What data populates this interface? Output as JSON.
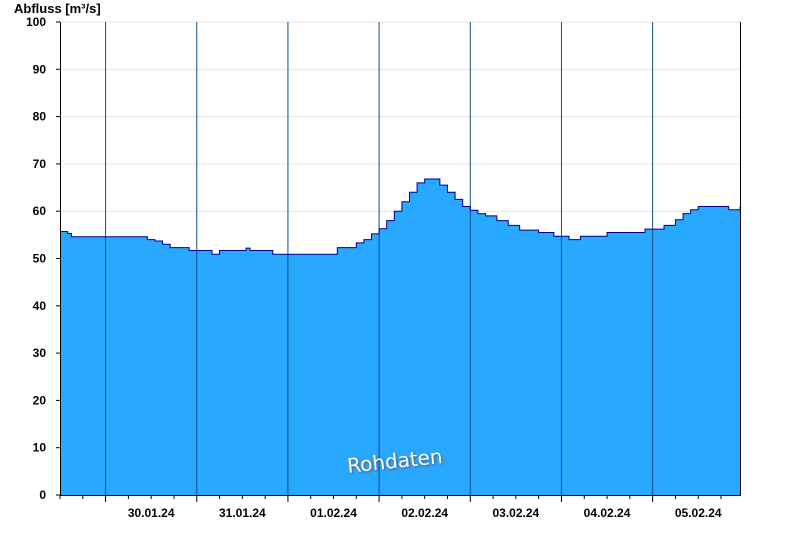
{
  "chart_data": {
    "type": "area",
    "ylabel": "Abfluss [m³/s]",
    "ylim": [
      0,
      100
    ],
    "yticks": [
      0,
      10,
      20,
      30,
      40,
      50,
      60,
      70,
      80,
      90,
      100
    ],
    "xlim": [
      "2024-01-29 12:00",
      "2024-02-05 23:00"
    ],
    "x_tick_labels": [
      "30.01.24",
      "31.01.24",
      "01.02.24",
      "02.02.24",
      "03.02.24",
      "04.02.24",
      "05.02.24"
    ],
    "grid": true,
    "annotation": "Rohdaten",
    "colors": {
      "fill": "#29a8ff",
      "line": "#00008b",
      "day_divider": "#104e8b"
    },
    "series": [
      {
        "x": [
          "2024-01-29 12:00",
          "2024-01-29 14:00",
          "2024-01-29 15:00",
          "2024-01-30 03:00",
          "2024-01-30 05:00",
          "2024-01-30 08:00",
          "2024-01-30 11:00",
          "2024-01-30 13:00",
          "2024-01-30 15:00",
          "2024-01-30 17:00",
          "2024-01-30 22:00",
          "2024-01-31 00:00",
          "2024-01-31 04:00",
          "2024-01-31 06:00",
          "2024-01-31 11:00",
          "2024-01-31 13:00",
          "2024-01-31 14:00",
          "2024-01-31 16:00",
          "2024-01-31 20:00",
          "2024-01-31 22:00",
          "2024-02-01 12:00",
          "2024-02-01 13:00",
          "2024-02-01 17:00",
          "2024-02-01 18:00",
          "2024-02-01 20:00",
          "2024-02-01 22:00",
          "2024-02-02 00:00",
          "2024-02-02 02:00",
          "2024-02-02 04:00",
          "2024-02-02 06:00",
          "2024-02-02 08:00",
          "2024-02-02 10:00",
          "2024-02-02 12:00",
          "2024-02-02 14:00",
          "2024-02-02 16:00",
          "2024-02-02 18:00",
          "2024-02-02 20:00",
          "2024-02-02 22:00",
          "2024-02-03 00:00",
          "2024-02-03 02:00",
          "2024-02-03 04:00",
          "2024-02-03 07:00",
          "2024-02-03 10:00",
          "2024-02-03 13:00",
          "2024-02-03 16:00",
          "2024-02-03 18:00",
          "2024-02-03 22:00",
          "2024-02-04 02:00",
          "2024-02-04 05:00",
          "2024-02-04 06:00",
          "2024-02-04 12:00",
          "2024-02-04 18:00",
          "2024-02-04 22:00",
          "2024-02-05 00:00",
          "2024-02-05 03:00",
          "2024-02-05 06:00",
          "2024-02-05 08:00",
          "2024-02-05 10:00",
          "2024-02-05 12:00",
          "2024-02-05 18:00",
          "2024-02-05 20:00",
          "2024-02-05 23:00"
        ],
        "y": [
          55.7,
          55.3,
          54.6,
          54.6,
          54.6,
          54.6,
          54.0,
          53.7,
          53.0,
          52.3,
          51.7,
          51.7,
          50.9,
          51.7,
          51.7,
          52.2,
          51.7,
          51.7,
          50.9,
          50.9,
          50.9,
          52.3,
          52.3,
          53.3,
          54.0,
          55.2,
          56.3,
          58.0,
          60.0,
          62.0,
          64.0,
          66.0,
          66.8,
          66.8,
          65.5,
          64.0,
          62.5,
          61.0,
          60.2,
          59.5,
          59.0,
          58.0,
          57.0,
          56.0,
          56.0,
          55.5,
          54.7,
          54.0,
          54.7,
          54.7,
          55.5,
          55.5,
          56.2,
          56.2,
          57.0,
          58.2,
          59.5,
          60.3,
          61.0,
          61.0,
          60.3,
          61.0
        ]
      }
    ]
  }
}
